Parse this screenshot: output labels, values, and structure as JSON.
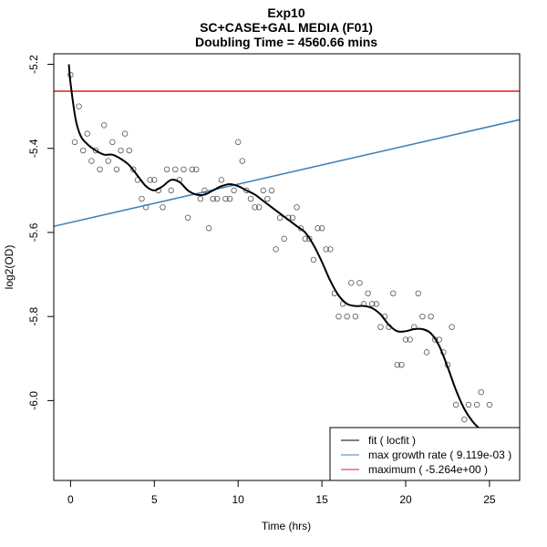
{
  "chart_data": {
    "type": "scatter",
    "title": "Exp10",
    "subtitle": "SC+CASE+GAL MEDIA (F01)",
    "subtitle2": "Doubling Time = 4560.66 mins",
    "xlabel": "Time (hrs)",
    "ylabel": "log2(OD)",
    "xlim": [
      -1,
      26.8
    ],
    "ylim": [
      -6.19,
      -5.175
    ],
    "x_ticks": [
      0,
      5,
      10,
      15,
      20,
      25
    ],
    "x_tick_labels": [
      "0",
      "5",
      "10",
      "15",
      "20",
      "25"
    ],
    "y_ticks": [
      -5.2,
      -5.4,
      -5.6,
      -5.8,
      -6.0
    ],
    "y_tick_labels": [
      "-5.2",
      "-5.4",
      "-5.6",
      "-5.8",
      "-6.0"
    ],
    "points": [
      [
        0.0,
        -5.225
      ],
      [
        0.25,
        -5.385
      ],
      [
        0.5,
        -5.3
      ],
      [
        0.75,
        -5.405
      ],
      [
        1.0,
        -5.365
      ],
      [
        1.25,
        -5.43
      ],
      [
        1.5,
        -5.405
      ],
      [
        1.75,
        -5.45
      ],
      [
        2.0,
        -5.345
      ],
      [
        2.25,
        -5.43
      ],
      [
        2.5,
        -5.385
      ],
      [
        2.75,
        -5.45
      ],
      [
        3.0,
        -5.405
      ],
      [
        3.25,
        -5.365
      ],
      [
        3.5,
        -5.405
      ],
      [
        3.75,
        -5.45
      ],
      [
        4.0,
        -5.475
      ],
      [
        4.25,
        -5.52
      ],
      [
        4.5,
        -5.54
      ],
      [
        4.75,
        -5.475
      ],
      [
        5.0,
        -5.475
      ],
      [
        5.25,
        -5.5
      ],
      [
        5.5,
        -5.54
      ],
      [
        5.75,
        -5.45
      ],
      [
        6.0,
        -5.5
      ],
      [
        6.25,
        -5.45
      ],
      [
        6.5,
        -5.475
      ],
      [
        6.75,
        -5.45
      ],
      [
        7.0,
        -5.565
      ],
      [
        7.25,
        -5.45
      ],
      [
        7.5,
        -5.45
      ],
      [
        7.75,
        -5.52
      ],
      [
        8.0,
        -5.5
      ],
      [
        8.25,
        -5.59
      ],
      [
        8.5,
        -5.52
      ],
      [
        8.75,
        -5.52
      ],
      [
        9.0,
        -5.475
      ],
      [
        9.25,
        -5.52
      ],
      [
        9.5,
        -5.52
      ],
      [
        9.75,
        -5.5
      ],
      [
        10.0,
        -5.385
      ],
      [
        10.25,
        -5.43
      ],
      [
        10.5,
        -5.5
      ],
      [
        10.75,
        -5.52
      ],
      [
        11.0,
        -5.54
      ],
      [
        11.25,
        -5.54
      ],
      [
        11.5,
        -5.5
      ],
      [
        11.75,
        -5.52
      ],
      [
        12.0,
        -5.5
      ],
      [
        12.25,
        -5.64
      ],
      [
        12.5,
        -5.565
      ],
      [
        12.75,
        -5.615
      ],
      [
        13.0,
        -5.565
      ],
      [
        13.25,
        -5.565
      ],
      [
        13.5,
        -5.54
      ],
      [
        13.75,
        -5.59
      ],
      [
        14.0,
        -5.615
      ],
      [
        14.25,
        -5.615
      ],
      [
        14.5,
        -5.665
      ],
      [
        14.75,
        -5.59
      ],
      [
        15.0,
        -5.59
      ],
      [
        15.25,
        -5.64
      ],
      [
        15.5,
        -5.64
      ],
      [
        15.75,
        -5.745
      ],
      [
        16.0,
        -5.8
      ],
      [
        16.25,
        -5.77
      ],
      [
        16.5,
        -5.8
      ],
      [
        16.75,
        -5.72
      ],
      [
        17.0,
        -5.8
      ],
      [
        17.25,
        -5.72
      ],
      [
        17.5,
        -5.77
      ],
      [
        17.75,
        -5.745
      ],
      [
        18.0,
        -5.77
      ],
      [
        18.25,
        -5.77
      ],
      [
        18.5,
        -5.825
      ],
      [
        18.75,
        -5.8
      ],
      [
        19.0,
        -5.825
      ],
      [
        19.25,
        -5.745
      ],
      [
        19.5,
        -5.915
      ],
      [
        19.75,
        -5.915
      ],
      [
        20.0,
        -5.855
      ],
      [
        20.25,
        -5.855
      ],
      [
        20.5,
        -5.825
      ],
      [
        20.75,
        -5.745
      ],
      [
        21.0,
        -5.8
      ],
      [
        21.25,
        -5.885
      ],
      [
        21.5,
        -5.8
      ],
      [
        21.75,
        -5.855
      ],
      [
        22.0,
        -5.855
      ],
      [
        22.25,
        -5.885
      ],
      [
        22.5,
        -5.915
      ],
      [
        22.75,
        -5.825
      ],
      [
        23.0,
        -6.01
      ],
      [
        23.5,
        -6.045
      ],
      [
        23.75,
        -6.01
      ],
      [
        24.25,
        -6.01
      ],
      [
        24.5,
        -5.98
      ],
      [
        25.0,
        -6.01
      ]
    ],
    "fit_curve": [
      [
        -0.1,
        -5.2
      ],
      [
        0.0,
        -5.245
      ],
      [
        0.3,
        -5.33
      ],
      [
        0.6,
        -5.37
      ],
      [
        1.0,
        -5.39
      ],
      [
        1.5,
        -5.405
      ],
      [
        2.0,
        -5.415
      ],
      [
        2.5,
        -5.415
      ],
      [
        3.0,
        -5.425
      ],
      [
        3.5,
        -5.44
      ],
      [
        4.0,
        -5.465
      ],
      [
        4.5,
        -5.49
      ],
      [
        5.0,
        -5.5
      ],
      [
        5.5,
        -5.49
      ],
      [
        6.0,
        -5.475
      ],
      [
        6.5,
        -5.48
      ],
      [
        7.0,
        -5.5
      ],
      [
        7.5,
        -5.51
      ],
      [
        8.0,
        -5.51
      ],
      [
        8.5,
        -5.5
      ],
      [
        9.0,
        -5.49
      ],
      [
        9.5,
        -5.485
      ],
      [
        10.0,
        -5.49
      ],
      [
        10.5,
        -5.5
      ],
      [
        11.0,
        -5.51
      ],
      [
        11.5,
        -5.525
      ],
      [
        12.0,
        -5.54
      ],
      [
        12.5,
        -5.555
      ],
      [
        13.0,
        -5.57
      ],
      [
        13.5,
        -5.585
      ],
      [
        14.0,
        -5.6
      ],
      [
        14.5,
        -5.63
      ],
      [
        15.0,
        -5.67
      ],
      [
        15.5,
        -5.715
      ],
      [
        16.0,
        -5.75
      ],
      [
        16.5,
        -5.77
      ],
      [
        17.0,
        -5.775
      ],
      [
        17.5,
        -5.775
      ],
      [
        18.0,
        -5.78
      ],
      [
        18.5,
        -5.795
      ],
      [
        19.0,
        -5.82
      ],
      [
        19.5,
        -5.835
      ],
      [
        20.0,
        -5.835
      ],
      [
        20.5,
        -5.83
      ],
      [
        21.0,
        -5.83
      ],
      [
        21.5,
        -5.84
      ],
      [
        22.0,
        -5.87
      ],
      [
        22.5,
        -5.92
      ],
      [
        23.0,
        -5.975
      ],
      [
        23.5,
        -6.02
      ],
      [
        24.0,
        -6.05
      ],
      [
        24.5,
        -6.07
      ],
      [
        25.0,
        -6.085
      ],
      [
        25.5,
        -6.095
      ],
      [
        26.0,
        -6.1
      ],
      [
        26.5,
        -6.105
      ],
      [
        26.8,
        -6.107
      ]
    ],
    "max_growth_line": {
      "x0": -1.0,
      "y0": -5.5855,
      "x1": 26.8,
      "y1": -5.3318
    },
    "maximum_line_y": -5.264,
    "colors": {
      "fit": "#000000",
      "max_growth": "#4682b4",
      "maximum": "#d62020",
      "points": "#555555",
      "frame": "#000000"
    },
    "legend": {
      "placement": "bottom-right",
      "items": [
        {
          "label": "fit ( locfit )",
          "color": "#000000"
        },
        {
          "label": "max growth rate ( 9.119e-03 )",
          "color": "#4682b4"
        },
        {
          "label": "maximum ( -5.264e+00 )",
          "color": "#d62020"
        }
      ]
    },
    "grid": false
  }
}
